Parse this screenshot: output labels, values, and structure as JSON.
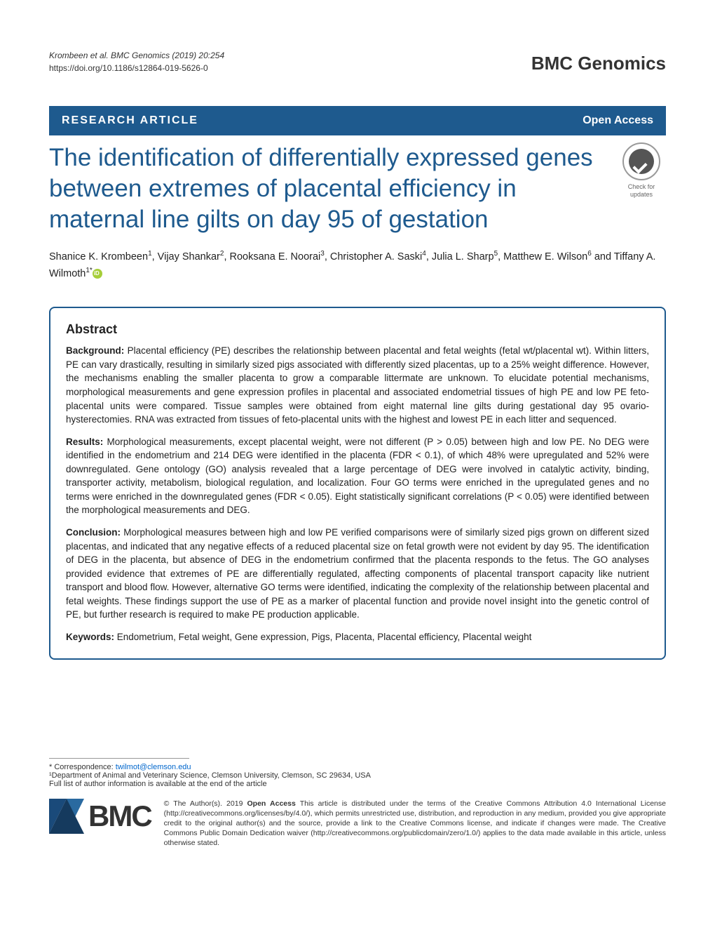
{
  "meta": {
    "citation": "Krombeen et al. BMC Genomics          (2019) 20:254",
    "doi": "https://doi.org/10.1186/s12864-019-5626-0",
    "journal": "BMC Genomics"
  },
  "header": {
    "type": "RESEARCH ARTICLE",
    "access": "Open Access"
  },
  "title": "The identification of differentially expressed genes between extremes of placental efficiency in maternal line gilts on day 95 of gestation",
  "crossmark": {
    "line1": "Check for",
    "line2": "updates"
  },
  "authors_html": "Shanice K. Krombeen<sup>1</sup>, Vijay Shankar<sup>2</sup>, Rooksana E. Noorai<sup>3</sup>, Christopher A. Saski<sup>4</sup>, Julia L. Sharp<sup>5</sup>, Matthew E. Wilson<sup>6</sup> and Tiffany A. Wilmoth<sup>1*</sup>",
  "abstract": {
    "heading": "Abstract",
    "background": {
      "label": "Background:",
      "text": " Placental efficiency (PE) describes the relationship between placental and fetal weights (fetal wt/placental wt). Within litters, PE can vary drastically, resulting in similarly sized pigs associated with differently sized placentas, up to a 25% weight difference. However, the mechanisms enabling the smaller placenta to grow a comparable littermate are unknown. To elucidate potential mechanisms, morphological measurements and gene expression profiles in placental and associated endometrial tissues of high PE and low PE feto-placental units were compared. Tissue samples were obtained from eight maternal line gilts during gestational day 95 ovario-hysterectomies. RNA was extracted from tissues of feto-placental units with the highest and lowest PE in each litter and sequenced."
    },
    "results": {
      "label": "Results:",
      "text": " Morphological measurements, except placental weight, were not different (P > 0.05) between high and low PE. No DEG were identified in the endometrium and 214 DEG were identified in the placenta (FDR < 0.1), of which 48% were upregulated and 52% were downregulated. Gene ontology (GO) analysis revealed that a large percentage of DEG were involved in catalytic activity, binding, transporter activity, metabolism, biological regulation, and localization. Four GO terms were enriched in the upregulated genes and no terms were enriched in the downregulated genes (FDR < 0.05). Eight statistically significant correlations (P < 0.05) were identified between the morphological measurements and DEG."
    },
    "conclusion": {
      "label": "Conclusion:",
      "text": " Morphological measures between high and low PE verified comparisons were of similarly sized pigs grown on different sized placentas, and indicated that any negative effects of a reduced placental size on fetal growth were not evident by day 95. The identification of DEG in the placenta, but absence of DEG in the endometrium confirmed that the placenta responds to the fetus. The GO analyses provided evidence that extremes of PE are differentially regulated, affecting components of placental transport capacity like nutrient transport and blood flow. However, alternative GO terms were identified, indicating the complexity of the relationship between placental and fetal weights. These findings support the use of PE as a marker of placental function and provide novel insight into the genetic control of PE, but further research is required to make PE production applicable."
    },
    "keywords": {
      "label": "Keywords:",
      "text": " Endometrium, Fetal weight, Gene expression, Pigs, Placenta, Placental efficiency, Placental weight"
    }
  },
  "footer": {
    "corr_label": "* Correspondence: ",
    "corr_email": "twilmot@clemson.edu",
    "affil": "¹Department of Animal and Veterinary Science, Clemson University, Clemson, SC 29634, USA",
    "full_list": "Full list of author information is available at the end of the article",
    "bmc": "BMC",
    "license_prefix": "© The Author(s). 2019 ",
    "license_bold": "Open Access",
    "license_text": " This article is distributed under the terms of the Creative Commons Attribution 4.0 International License (http://creativecommons.org/licenses/by/4.0/), which permits unrestricted use, distribution, and reproduction in any medium, provided you give appropriate credit to the original author(s) and the source, provide a link to the Creative Commons license, and indicate if changes were made. The Creative Commons Public Domain Dedication waiver (http://creativecommons.org/publicdomain/zero/1.0/) applies to the data made available in this article, unless otherwise stated."
  },
  "colors": {
    "brand_blue": "#1e5a8e",
    "link": "#0066cc",
    "text": "#222222"
  }
}
